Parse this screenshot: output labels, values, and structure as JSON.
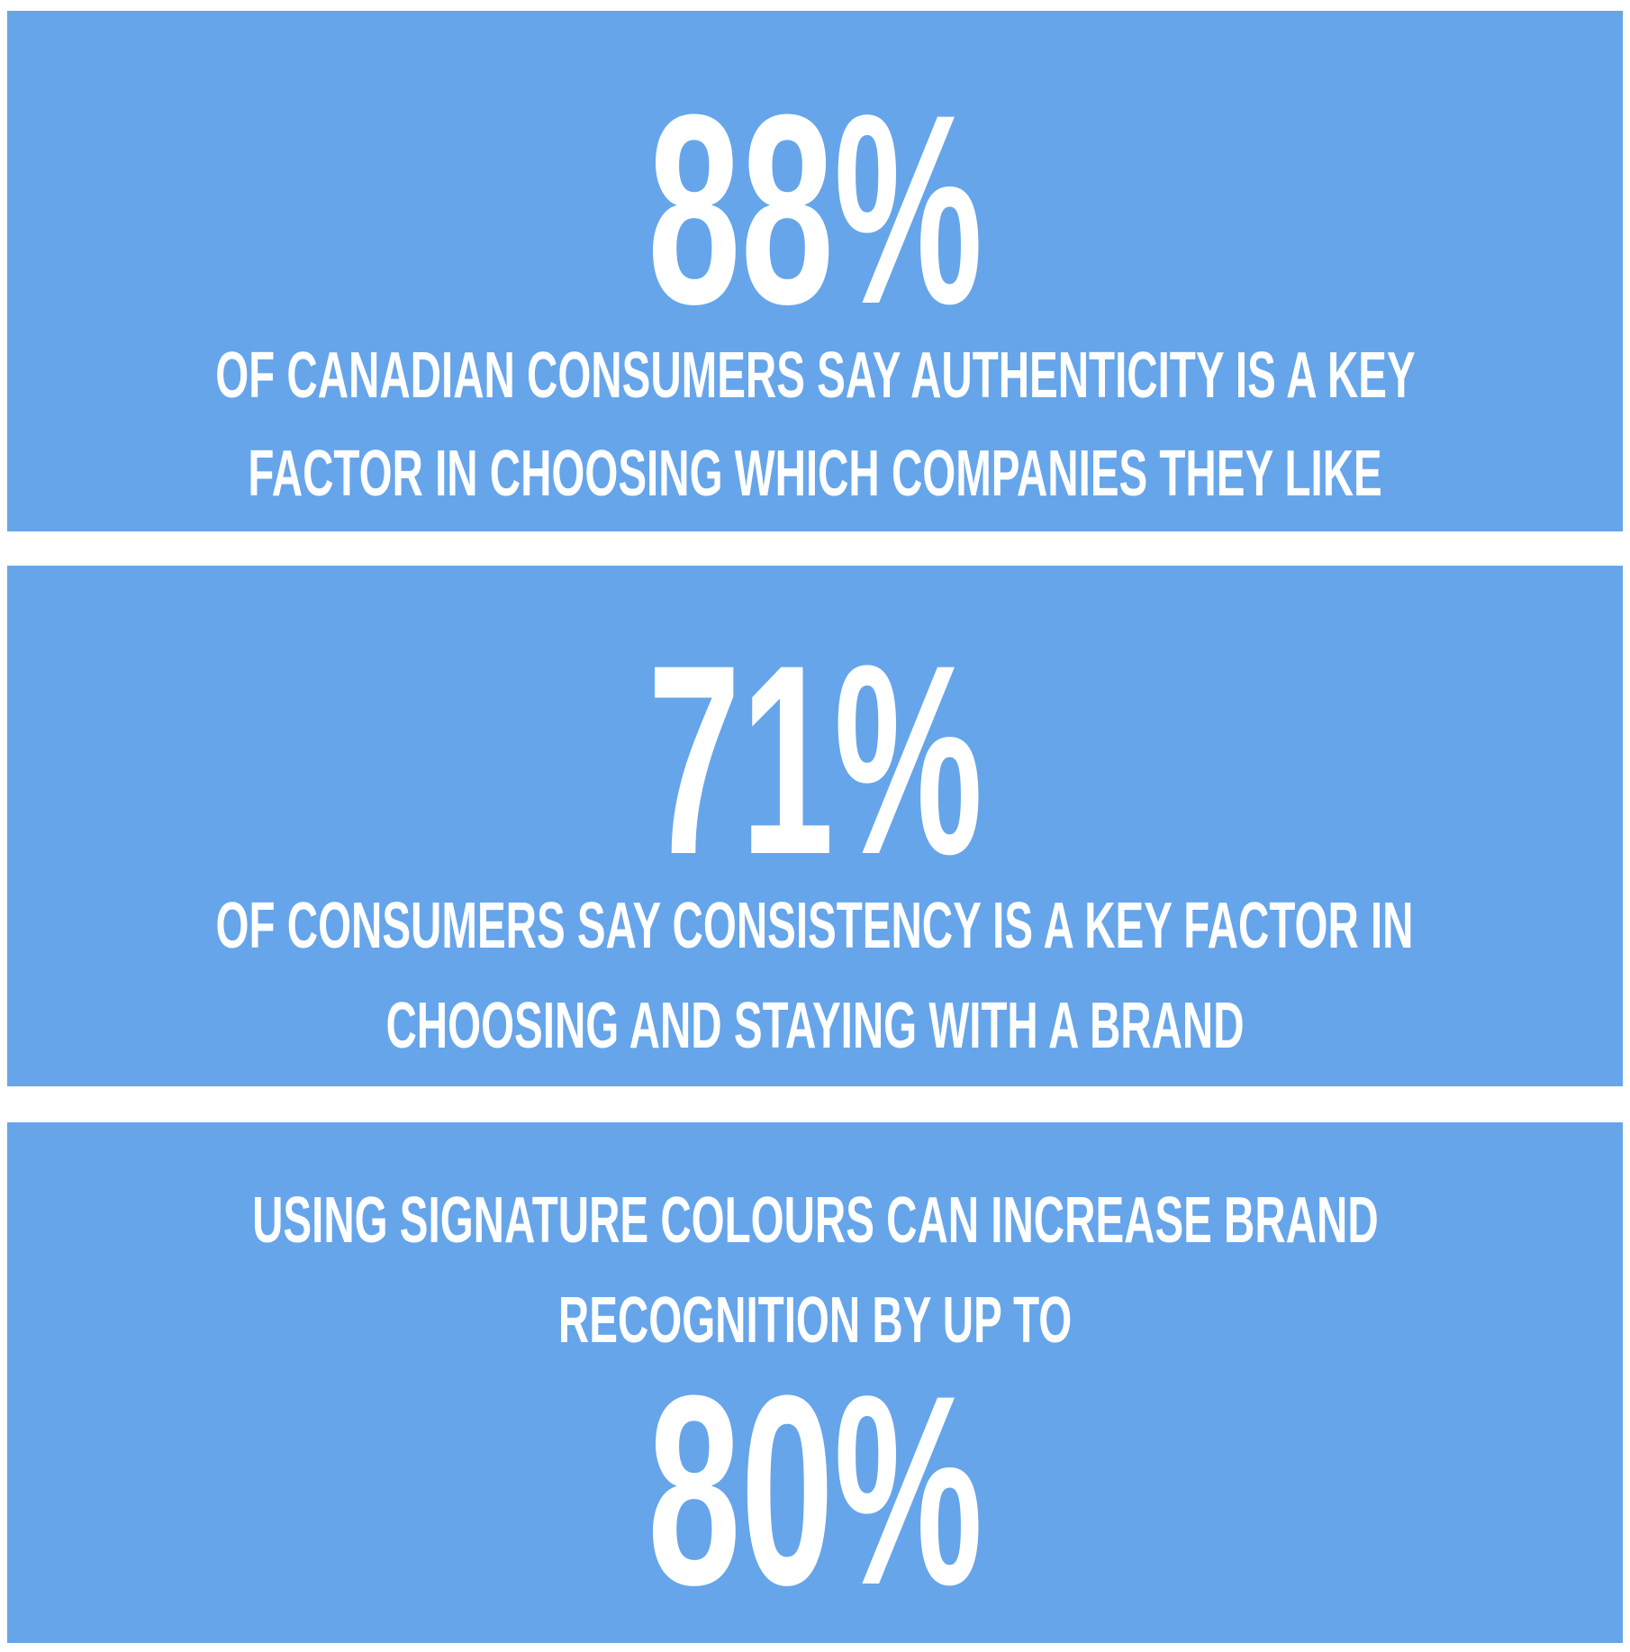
{
  "panels": [
    {
      "stat": "88%",
      "lines": [
        "OF CANADIAN CONSUMERS SAY AUTHENTICITY IS A KEY",
        "FACTOR IN CHOOSING WHICH COMPANIES THEY LIKE"
      ]
    },
    {
      "stat": "71%",
      "lines": [
        "OF CONSUMERS SAY CONSISTENCY IS A KEY FACTOR IN",
        "CHOOSING AND STAYING WITH A BRAND"
      ]
    },
    {
      "lines": [
        "USING SIGNATURE COLOURS CAN INCREASE BRAND",
        "RECOGNITION BY UP TO"
      ],
      "stat": "80%"
    }
  ]
}
